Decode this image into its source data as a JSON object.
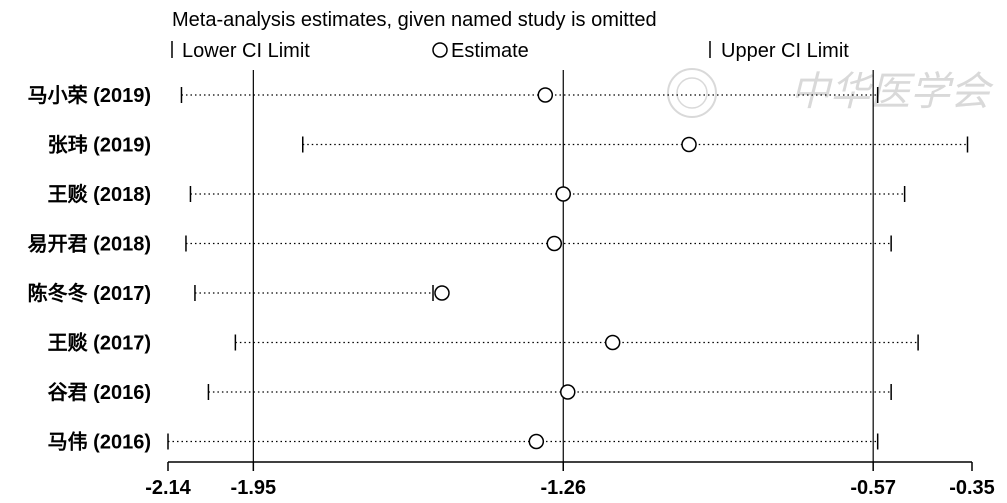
{
  "chart_data": {
    "type": "scatter",
    "title": "Meta-analysis estimates, given named study is omitted",
    "legend": {
      "placement": "top",
      "lower": "Lower CI Limit",
      "estimate": "Estimate",
      "upper": "Upper CI Limit"
    },
    "xlim": [
      -2.14,
      -0.35
    ],
    "xticks": [
      {
        "value": -2.14,
        "label": "-2.14"
      },
      {
        "value": -1.95,
        "label": "-1.95"
      },
      {
        "value": -1.26,
        "label": "-1.26"
      },
      {
        "value": -0.57,
        "label": "-0.57"
      },
      {
        "value": -0.35,
        "label": "-0.35"
      }
    ],
    "reference_lines": [
      -1.95,
      -1.26,
      -0.57
    ],
    "studies": [
      {
        "label": "马小荣 (2019)",
        "lower": -2.11,
        "estimate": -1.3,
        "upper": -0.56
      },
      {
        "label": "张玮 (2019)",
        "lower": -1.84,
        "estimate": -0.98,
        "upper": -0.36
      },
      {
        "label": "王赕 (2018)",
        "lower": -2.09,
        "estimate": -1.26,
        "upper": -0.5
      },
      {
        "label": "易开君 (2018)",
        "lower": -2.1,
        "estimate": -1.28,
        "upper": -0.53
      },
      {
        "label": "陈冬冬 (2017)",
        "lower": -2.08,
        "estimate": -1.53,
        "upper": -1.55
      },
      {
        "label": "王赕 (2017)",
        "lower": -1.99,
        "estimate": -1.15,
        "upper": -0.47
      },
      {
        "label": "谷君 (2016)",
        "lower": -2.05,
        "estimate": -1.25,
        "upper": -0.53
      },
      {
        "label": "马伟 (2016)",
        "lower": -2.14,
        "estimate": -1.32,
        "upper": -0.56
      }
    ]
  },
  "watermark": "中华医学会"
}
